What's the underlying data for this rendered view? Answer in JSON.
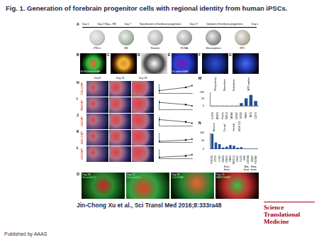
{
  "header": {
    "title": "Fig. 1. Generation of forebrain progenitor cells with regional identity from human iPSCs."
  },
  "panel_a": {
    "letter": "A",
    "timeline": [
      "Day 0",
      "Day 2 Nog + SB",
      "Day 7",
      "Specification of forebrain progenitors",
      "Day 17",
      "Isolation of forebrain progenitors",
      "Day x"
    ],
    "stages": [
      "iPSCs",
      "EB",
      "Rosette",
      "RONA",
      "Neurosphere",
      "NPC"
    ]
  },
  "panels_b_g": [
    {
      "letter": "B",
      "stain": "FOXG1/Nestin/DAPI"
    },
    {
      "letter": "C"
    },
    {
      "letter": "D"
    },
    {
      "letter": "E",
      "stain": "N-cadherin/DAPI"
    },
    {
      "letter": "F"
    },
    {
      "letter": "G"
    }
  ],
  "panels_h_l": {
    "columns": [
      "Day 8",
      "Day 16",
      "Day 18"
    ],
    "rows": [
      {
        "letter": "H",
        "stain": "FOXG1/DAPI"
      },
      {
        "letter": "I",
        "stain": "PAX6/DAPI"
      },
      {
        "letter": "J",
        "stain": "LHX2/DAPI"
      },
      {
        "letter": "K",
        "stain": "NKX2.1/DAPI"
      },
      {
        "letter": "L",
        "stain": "GSX2/DAPI"
      }
    ]
  },
  "panel_o": {
    "letter": "O",
    "images": [
      {
        "day": "Day 16",
        "stain": "Nestin/DCX"
      },
      {
        "day": "Day 22",
        "stain": "Nestin/DCX"
      },
      {
        "day": "Day 45",
        "stain": "Tuj1/GFAP"
      },
      {
        "day": "Day 72",
        "stain": "MAP2/GFAP"
      }
    ]
  },
  "chart_data": [
    {
      "type": "line",
      "x": [
        8,
        16,
        18
      ],
      "values": [
        30,
        65,
        85
      ],
      "xlim": [
        8,
        18
      ],
      "ylim": [
        0,
        100
      ],
      "tick_labels": false,
      "grid": false,
      "color": "#000000",
      "marker": "circle"
    },
    {
      "type": "line",
      "x": [
        8,
        16,
        18
      ],
      "values": [
        80,
        55,
        40
      ],
      "xlim": [
        8,
        18
      ],
      "ylim": [
        0,
        100
      ],
      "tick_labels": false,
      "grid": false,
      "color": "#000000",
      "marker": "circle"
    },
    {
      "type": "line",
      "x": [
        8,
        16,
        18
      ],
      "values": [
        70,
        45,
        30
      ],
      "xlim": [
        8,
        18
      ],
      "ylim": [
        0,
        100
      ],
      "tick_labels": false,
      "grid": false,
      "color": "#000000",
      "marker": "circle"
    },
    {
      "type": "line",
      "x": [
        8,
        16,
        18
      ],
      "values": [
        10,
        25,
        35
      ],
      "xlim": [
        8,
        18
      ],
      "ylim": [
        0,
        100
      ],
      "tick_labels": false,
      "grid": false,
      "color": "#000000",
      "marker": "circle"
    },
    {
      "type": "line",
      "x": [
        8,
        16,
        18
      ],
      "values": [
        15,
        30,
        45
      ],
      "xlim": [
        8,
        18
      ],
      "ylim": [
        0,
        100
      ],
      "tick_labels": false,
      "grid": false,
      "color": "#000000",
      "marker": "circle"
    },
    {
      "type": "bar",
      "title": "M",
      "categories": [
        "POU5F1",
        "NANOG",
        "Brachyury",
        "MIXL1",
        "GATA4",
        "SOX17",
        "SOX1",
        "PAX6",
        "NES",
        "CDH2"
      ],
      "values": [
        1,
        1,
        1,
        1,
        1,
        1,
        20,
        55,
        80,
        35
      ],
      "ylim": [
        0,
        100
      ],
      "yticks": [
        0,
        50,
        100
      ],
      "grid": false,
      "color": "#1f4e99",
      "groups": [
        {
          "name": "Pluripotency",
          "members": [
            "POU5F1",
            "NANOG"
          ]
        },
        {
          "name": "Mesoderm",
          "members": [
            "Brachyury",
            "MIXL1"
          ]
        },
        {
          "name": "Endoderm",
          "members": [
            "GATA4",
            "SOX17"
          ]
        },
        {
          "name": "NPC marker",
          "members": [
            "SOX1",
            "PAX6",
            "NES",
            "CDH2"
          ]
        }
      ]
    },
    {
      "type": "bar",
      "title": "N",
      "categories": [
        "FOXG1",
        "OTX2",
        "LHX2",
        "EMX1",
        "EMX2",
        "PAX6",
        "NKX2.1",
        "GSX2",
        "DLX2",
        "EN1",
        "LMX1A",
        "GBX2",
        "HOXB2"
      ],
      "values": [
        95,
        40,
        30,
        10,
        15,
        25,
        20,
        8,
        12,
        2,
        1,
        1,
        1
      ],
      "ylim": [
        0,
        100
      ],
      "yticks": [
        0,
        50,
        100
      ],
      "grid": false,
      "color": "#1f4e99",
      "groups": [
        {
          "name": "Anterior",
          "members": [
            "FOXG1",
            "OTX2"
          ]
        },
        {
          "name": "Dorsal",
          "members": [
            "LHX2",
            "EMX1",
            "EMX2",
            "PAX6"
          ]
        },
        {
          "name": "Ventral",
          "members": [
            "NKX2.1"
          ]
        },
        {
          "name": "MGE CGE",
          "members": [
            "GSX2",
            "DLX2"
          ]
        }
      ],
      "regions": [
        {
          "name": "Fore-brain",
          "members": [
            "FOXG1",
            "OTX2",
            "LHX2",
            "EMX1",
            "EMX2",
            "PAX6",
            "NKX2.1",
            "GSX2",
            "DLX2"
          ]
        },
        {
          "name": "Mid-brain",
          "members": [
            "EN1",
            "LMX1A"
          ]
        },
        {
          "name": "Hind-brain",
          "members": [
            "GBX2",
            "HOXB2"
          ]
        }
      ]
    }
  ],
  "footer": {
    "citation": "Jin-Chong Xu et al., Sci Transl Med 2016;8:333ra48",
    "journal": "Science Translational Medicine",
    "publisher": "Published by AAAS"
  }
}
